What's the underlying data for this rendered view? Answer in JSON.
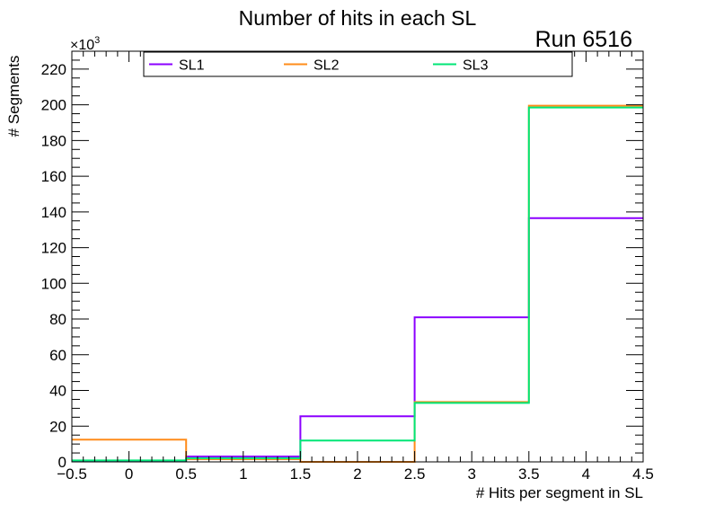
{
  "chart_data": {
    "type": "histogram-step",
    "title": "Number of hits in each SL",
    "annotation": "Run 6516",
    "xlabel": "# Hits per segment in SL",
    "ylabel": "# Segments",
    "y_multiplier_label": "×10",
    "y_multiplier_exponent": "3",
    "xlim": [
      -0.5,
      4.5
    ],
    "ylim": [
      0,
      230
    ],
    "x_ticks": [
      -0.5,
      0,
      0.5,
      1,
      1.5,
      2,
      2.5,
      3,
      3.5,
      4,
      4.5
    ],
    "x_tick_labels": [
      "−0.5",
      "0",
      "0.5",
      "1",
      "1.5",
      "2",
      "2.5",
      "3",
      "3.5",
      "4",
      "4.5"
    ],
    "y_ticks": [
      0,
      20,
      40,
      60,
      80,
      100,
      120,
      140,
      160,
      180,
      200,
      220
    ],
    "y_tick_labels": [
      "0",
      "20",
      "40",
      "60",
      "80",
      "100",
      "120",
      "140",
      "160",
      "180",
      "200",
      "220"
    ],
    "bin_edges": [
      -0.5,
      0.5,
      1.5,
      2.5,
      3.5,
      4.5
    ],
    "legend_position": "top",
    "series": [
      {
        "name": "SL1",
        "color": "#8b00ff",
        "values": [
          0.5,
          3,
          25.5,
          81,
          136.5
        ]
      },
      {
        "name": "SL2",
        "color": "#ff8c1a",
        "values": [
          12.5,
          1.5,
          0,
          33.5,
          199.5
        ]
      },
      {
        "name": "SL3",
        "color": "#00e676",
        "values": [
          0.8,
          2,
          12,
          33,
          198.5
        ]
      }
    ]
  }
}
